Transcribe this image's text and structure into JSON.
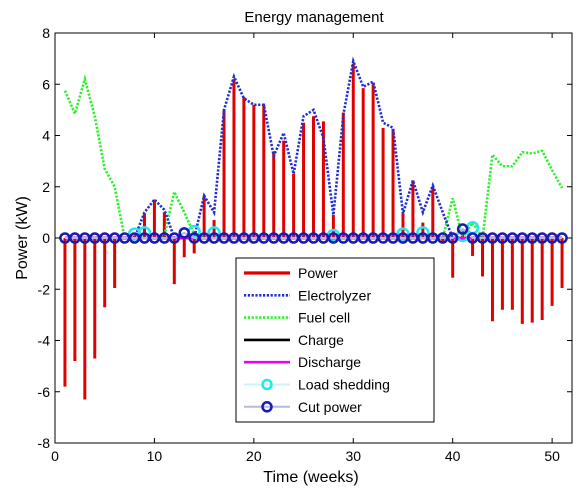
{
  "chart_data": {
    "type": "line",
    "title": "Energy management",
    "xlabel": "Time (weeks)",
    "ylabel": "Power (kW)",
    "xlim": [
      0,
      52
    ],
    "ylim": [
      -8,
      8
    ],
    "xticks": [
      0,
      10,
      20,
      30,
      40,
      50
    ],
    "yticks": [
      -8,
      -6,
      -4,
      -2,
      0,
      2,
      4,
      6,
      8
    ],
    "xtick_labels": [
      "0",
      "10",
      "20",
      "30",
      "40",
      "50"
    ],
    "ytick_labels": [
      "-8",
      "-6",
      "-4",
      "-2",
      "0",
      "2",
      "4",
      "6",
      "8"
    ],
    "grid": false,
    "legend_position": "center-bottom",
    "colors": {
      "power": "#e00000",
      "electrolyzer": "#1f2fd0",
      "fuel_cell": "#2cf22c",
      "charge": "#000000",
      "discharge": "#f000f0",
      "load_shedding": "#22e8f0",
      "cut_power": "#1a1ab0"
    },
    "x": [
      1,
      2,
      3,
      4,
      5,
      6,
      7,
      8,
      9,
      10,
      11,
      12,
      13,
      14,
      15,
      16,
      17,
      18,
      19,
      20,
      21,
      22,
      23,
      24,
      25,
      26,
      27,
      28,
      29,
      30,
      31,
      32,
      33,
      34,
      35,
      36,
      37,
      38,
      39,
      40,
      41,
      42,
      43,
      44,
      45,
      46,
      47,
      48,
      49,
      50,
      51
    ],
    "series": [
      {
        "name": "Power",
        "style": "stem",
        "values": [
          -5.8,
          -4.8,
          -6.3,
          -4.7,
          -2.7,
          -1.95,
          0,
          0.1,
          0.95,
          1.5,
          1.0,
          -1.8,
          -0.75,
          -0.6,
          1.65,
          0.7,
          5.0,
          6.2,
          5.5,
          5.2,
          5.2,
          3.3,
          3.8,
          2.5,
          4.5,
          4.75,
          4.55,
          0.9,
          4.9,
          6.8,
          5.85,
          6.0,
          4.3,
          4.25,
          0.95,
          2.25,
          0.6,
          2.0,
          -0.2,
          -1.55,
          0.3,
          -0.7,
          -1.5,
          -3.25,
          -2.8,
          -2.8,
          -3.35,
          -3.3,
          -3.2,
          -2.65,
          -1.95
        ]
      },
      {
        "name": "Electrolyzer",
        "style": "dotted",
        "values": [
          0,
          0,
          0,
          0,
          0,
          0,
          0,
          0,
          1.0,
          1.5,
          1.1,
          0,
          0,
          0,
          1.65,
          1.0,
          5.0,
          6.3,
          5.45,
          5.2,
          5.2,
          3.2,
          4.1,
          2.5,
          4.75,
          5.0,
          3.9,
          0.9,
          4.8,
          6.9,
          5.9,
          6.1,
          4.5,
          4.3,
          0.95,
          2.25,
          1.0,
          2.05,
          1.0,
          0,
          0,
          0,
          0,
          0,
          0,
          0,
          0,
          0,
          0,
          0,
          0
        ]
      },
      {
        "name": "Fuel cell",
        "style": "dotted",
        "values": [
          5.75,
          4.85,
          6.2,
          4.75,
          2.7,
          2.0,
          0,
          0,
          0,
          0,
          0.1,
          1.8,
          1.0,
          0.15,
          0,
          0,
          0,
          0,
          0,
          0,
          0,
          0,
          0,
          0,
          0,
          0,
          0,
          0,
          0,
          0,
          0,
          0,
          0,
          0,
          0,
          0,
          0,
          0,
          0,
          1.55,
          0,
          0.6,
          0,
          3.25,
          2.8,
          2.8,
          3.35,
          3.3,
          3.4,
          2.65,
          1.95
        ]
      },
      {
        "name": "Charge",
        "style": "solid",
        "values": [
          0,
          0,
          0,
          0,
          0,
          0,
          0,
          0,
          0,
          0,
          0,
          0,
          0,
          0,
          0,
          0,
          0,
          0,
          0,
          0,
          0,
          0,
          0,
          0,
          0,
          0,
          0,
          0,
          0,
          0,
          0,
          0,
          0,
          0,
          0,
          0,
          0,
          0,
          0,
          0,
          0,
          0,
          0,
          0,
          0,
          0,
          0,
          0,
          0,
          0,
          0
        ]
      },
      {
        "name": "Discharge",
        "style": "solid",
        "values": [
          0,
          0,
          0,
          0,
          0,
          0,
          0,
          0,
          0,
          0,
          0,
          0,
          0,
          0,
          0,
          0,
          0,
          0,
          0,
          0,
          0,
          0,
          0,
          0,
          0,
          0,
          0,
          0,
          0,
          0,
          0,
          0,
          0,
          0,
          0,
          0,
          0,
          0,
          0,
          0,
          0,
          0,
          0,
          0,
          0,
          0,
          0,
          0,
          0,
          0,
          0
        ]
      },
      {
        "name": "Load shedding",
        "style": "markers",
        "points": [
          [
            8,
            0.15
          ],
          [
            9,
            0.2
          ],
          [
            14,
            0.25
          ],
          [
            16,
            0.2
          ],
          [
            28,
            0.1
          ],
          [
            35,
            0.15
          ],
          [
            37,
            0.2
          ],
          [
            41,
            0.1
          ],
          [
            42,
            0.4
          ]
        ]
      },
      {
        "name": "Cut power",
        "style": "markers",
        "x": [
          1,
          2,
          3,
          4,
          5,
          6,
          7,
          8,
          9,
          10,
          11,
          12,
          13,
          14,
          15,
          16,
          17,
          18,
          19,
          20,
          21,
          22,
          23,
          24,
          25,
          26,
          27,
          28,
          29,
          30,
          31,
          32,
          33,
          34,
          35,
          36,
          37,
          38,
          39,
          40,
          41,
          42,
          43,
          44,
          45,
          46,
          47,
          48,
          49,
          50,
          51
        ],
        "values": [
          0,
          0,
          0,
          0,
          0,
          0,
          0,
          0,
          0,
          0,
          0,
          0,
          0.2,
          0,
          0,
          0,
          0,
          0,
          0,
          0,
          0,
          0,
          0,
          0,
          0,
          0,
          0,
          0,
          0,
          0,
          0,
          0,
          0,
          0,
          0,
          0,
          0,
          0,
          0,
          0,
          0.35,
          0,
          0,
          0,
          0,
          0,
          0,
          0,
          0,
          0,
          0
        ]
      }
    ]
  }
}
